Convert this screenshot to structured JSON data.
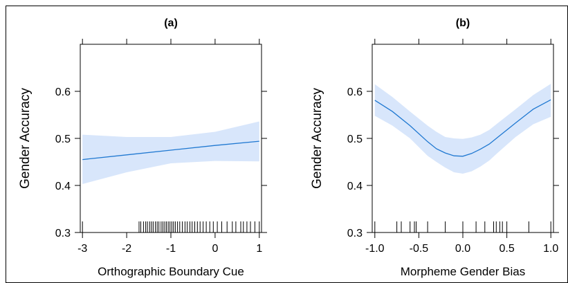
{
  "chart_data": [
    {
      "type": "line",
      "title": "(a)",
      "xlabel": "Orthographic Boundary Cue",
      "ylabel": "Gender Accuracy",
      "xlim": [
        -3.05,
        1.05
      ],
      "ylim": [
        0.3,
        0.7
      ],
      "xticks": [
        -3,
        -2,
        -1,
        0,
        1
      ],
      "xtick_labels": [
        "-3",
        "-2",
        "-1",
        "0",
        "1"
      ],
      "yticks": [
        0.3,
        0.4,
        0.5,
        0.6
      ],
      "ytick_labels": [
        "0.3",
        "0.4",
        "0.5",
        "0.6"
      ],
      "series": [
        {
          "x": [
            -3,
            -2,
            -1,
            0,
            1
          ],
          "values": [
            0.455,
            0.465,
            0.475,
            0.485,
            0.494
          ],
          "lower": [
            0.403,
            0.428,
            0.447,
            0.452,
            0.451
          ],
          "upper": [
            0.508,
            0.503,
            0.503,
            0.514,
            0.536
          ]
        }
      ],
      "rug": [
        -3.0,
        -1.72,
        -1.68,
        -1.62,
        -1.57,
        -1.53,
        -1.48,
        -1.44,
        -1.4,
        -1.35,
        -1.31,
        -1.27,
        -1.22,
        -1.18,
        -1.14,
        -1.1,
        -1.06,
        -1.02,
        -0.98,
        -0.94,
        -0.9,
        -0.85,
        -0.8,
        -0.74,
        -0.68,
        -0.63,
        -0.57,
        -0.52,
        -0.46,
        -0.4,
        -0.34,
        -0.27,
        -0.2,
        -0.12,
        -0.04,
        0.05,
        0.15,
        0.27,
        0.39,
        0.47,
        0.58,
        0.64,
        0.72,
        0.8,
        0.9,
        1.0
      ],
      "colors": {
        "line": "#1f78d1",
        "band": "#d8e6fb"
      }
    },
    {
      "type": "line",
      "title": "(b)",
      "xlabel": "Morpheme Gender Bias",
      "ylabel": "Gender Accuracy",
      "xlim": [
        -1.03,
        1.03
      ],
      "ylim": [
        0.3,
        0.7
      ],
      "xticks": [
        -1.0,
        -0.5,
        0.0,
        0.5,
        1.0
      ],
      "xtick_labels": [
        "-1.0",
        "-0.5",
        "0.0",
        "0.5",
        "1.0"
      ],
      "yticks": [
        0.3,
        0.4,
        0.5,
        0.6
      ],
      "ytick_labels": [
        "0.3",
        "0.4",
        "0.5",
        "0.6"
      ],
      "series": [
        {
          "x": [
            -1.0,
            -0.8,
            -0.6,
            -0.4,
            -0.3,
            -0.2,
            -0.1,
            0.0,
            0.1,
            0.2,
            0.3,
            0.4,
            0.6,
            0.8,
            1.0
          ],
          "values": [
            0.581,
            0.557,
            0.527,
            0.493,
            0.478,
            0.469,
            0.463,
            0.462,
            0.468,
            0.477,
            0.488,
            0.503,
            0.533,
            0.562,
            0.582
          ],
          "lower": [
            0.548,
            0.527,
            0.5,
            0.463,
            0.45,
            0.438,
            0.428,
            0.425,
            0.43,
            0.44,
            0.453,
            0.47,
            0.503,
            0.53,
            0.546
          ],
          "upper": [
            0.615,
            0.588,
            0.557,
            0.527,
            0.514,
            0.503,
            0.5,
            0.499,
            0.502,
            0.508,
            0.518,
            0.533,
            0.562,
            0.592,
            0.616
          ]
        }
      ],
      "rug": [
        -1.0,
        -0.75,
        -0.7,
        -0.6,
        -0.55,
        -0.53,
        -0.4,
        -0.2,
        0.0,
        0.15,
        0.25,
        0.35,
        0.38,
        0.42,
        0.45,
        0.5,
        0.75,
        1.0
      ],
      "colors": {
        "line": "#1f78d1",
        "band": "#d8e6fb"
      }
    }
  ]
}
